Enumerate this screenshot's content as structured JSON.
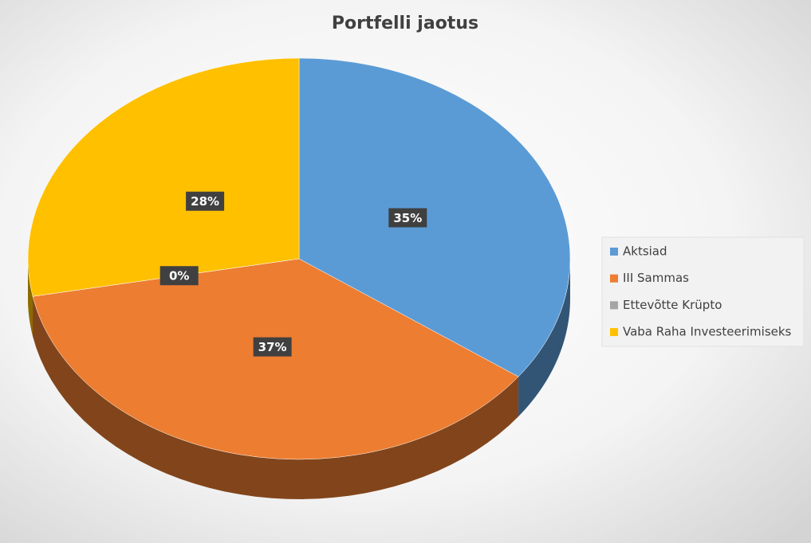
{
  "chart_data": {
    "type": "pie",
    "title": "Portfelli jaotus",
    "categories": [
      "Aktsiad",
      "III Sammas",
      "Ettevõtte Krüpto",
      "Vaba Raha Investeerimiseks"
    ],
    "values": [
      35,
      37,
      0,
      28
    ],
    "value_labels": [
      "35%",
      "37%",
      "0%",
      "28%"
    ],
    "colors": [
      "#5b9bd5",
      "#ed7d31",
      "#a5a5a5",
      "#ffc000"
    ],
    "legend": "right"
  }
}
